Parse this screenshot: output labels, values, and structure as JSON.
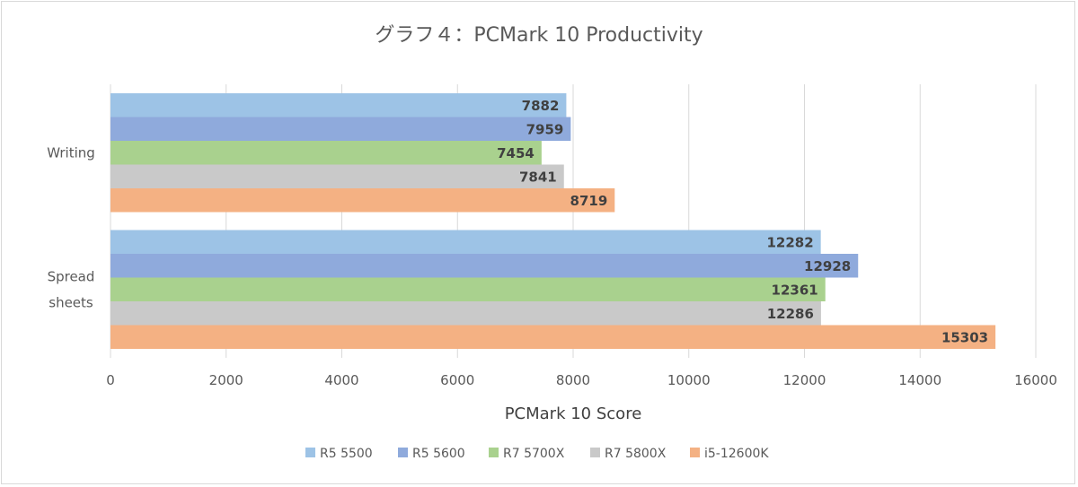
{
  "chart_data": {
    "type": "bar",
    "orientation": "horizontal",
    "title": "グラフ４：PCMark 10 Productivity",
    "xlabel": "PCMark 10 Score",
    "ylabel": "",
    "categories": [
      "Writing",
      "Spread\nsheets"
    ],
    "xlim": [
      0,
      16000
    ],
    "xticks": [
      0,
      2000,
      4000,
      6000,
      8000,
      10000,
      12000,
      14000,
      16000
    ],
    "grid": true,
    "legend_position": "bottom",
    "series": [
      {
        "name": "R5 5500",
        "color": "#9dc3e6",
        "values": [
          7882,
          12282
        ]
      },
      {
        "name": "R5 5600",
        "color": "#8faadc",
        "values": [
          7959,
          12928
        ]
      },
      {
        "name": "R7 5700X",
        "color": "#a9d18e",
        "values": [
          7454,
          12361
        ]
      },
      {
        "name": "R7 5800X",
        "color": "#c9c9c9",
        "values": [
          7841,
          12286
        ]
      },
      {
        "name": "i5-12600K",
        "color": "#f4b183",
        "values": [
          8719,
          15303
        ]
      }
    ]
  }
}
